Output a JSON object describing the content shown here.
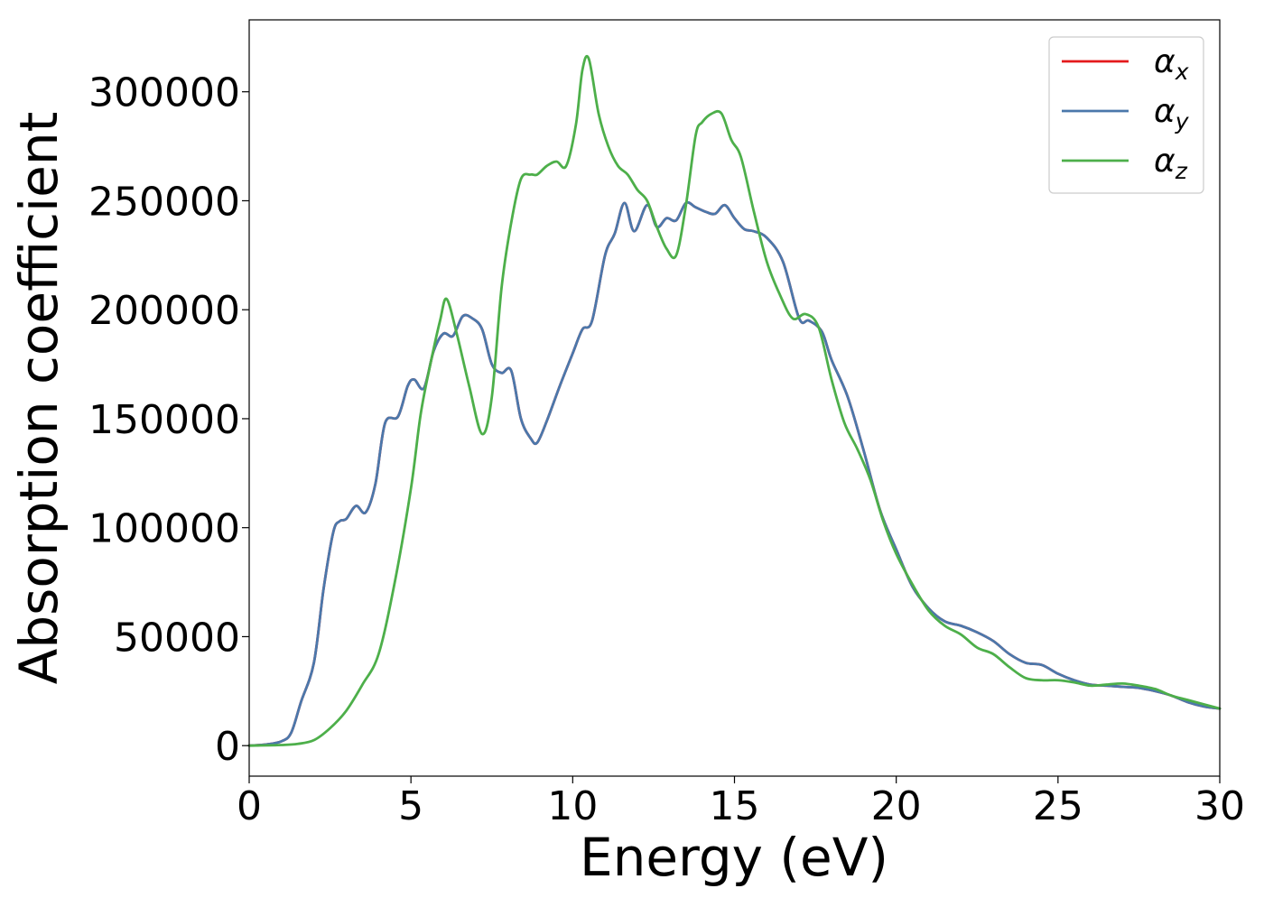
{
  "chart_data": {
    "type": "line",
    "xlabel": "Energy (eV)",
    "ylabel": "Absorption coefficient",
    "xlim": [
      0,
      30
    ],
    "ylim": [
      -14000,
      333000
    ],
    "xticks": [
      0,
      5,
      10,
      15,
      20,
      25,
      30
    ],
    "xtick_labels": [
      "0",
      "5",
      "10",
      "15",
      "20",
      "25",
      "30"
    ],
    "yticks": [
      0,
      50000,
      100000,
      150000,
      200000,
      250000,
      300000
    ],
    "ytick_labels": [
      "0",
      "50000",
      "100000",
      "150000",
      "200000",
      "250000",
      "300000"
    ],
    "grid": false,
    "legend_position": "top-right",
    "series": [
      {
        "name": "α_x",
        "legend_symbol": "α",
        "legend_subscript": "x",
        "color": "#e41a1c",
        "x": [
          0,
          0.5,
          1.0,
          1.3,
          1.6,
          2.0,
          2.3,
          2.6,
          2.8,
          3.0,
          3.3,
          3.6,
          3.9,
          4.2,
          4.6,
          4.9,
          5.1,
          5.4,
          5.7,
          6.0,
          6.3,
          6.6,
          6.9,
          7.2,
          7.5,
          7.8,
          8.1,
          8.4,
          8.7,
          8.9,
          9.2,
          9.6,
          10.0,
          10.3,
          10.6,
          11.0,
          11.3,
          11.6,
          11.9,
          12.3,
          12.6,
          12.9,
          13.2,
          13.5,
          13.8,
          14.1,
          14.4,
          14.7,
          15.0,
          15.3,
          15.6,
          16.0,
          16.5,
          17.0,
          17.3,
          17.7,
          18.0,
          18.5,
          19.0,
          19.5,
          20.0,
          20.5,
          21.0,
          21.5,
          22.0,
          22.5,
          23.0,
          23.5,
          24.0,
          24.5,
          25.0,
          25.5,
          26.0,
          26.5,
          27.0,
          27.5,
          28.0,
          28.5,
          29.0,
          29.5,
          30.0
        ],
        "y": [
          0,
          500,
          2000,
          6000,
          20000,
          38000,
          72000,
          98000,
          103000,
          104000,
          110000,
          107000,
          120000,
          148000,
          151000,
          165000,
          168000,
          164000,
          181000,
          189000,
          188000,
          197000,
          196000,
          191000,
          175000,
          171000,
          172000,
          150000,
          141000,
          139000,
          149000,
          165000,
          180000,
          191000,
          195000,
          225000,
          235000,
          249000,
          236000,
          248000,
          238000,
          242000,
          241000,
          249000,
          247000,
          245000,
          244000,
          248000,
          242000,
          237000,
          236000,
          233000,
          222000,
          196000,
          195000,
          190000,
          177000,
          160000,
          135000,
          108000,
          90000,
          73000,
          63000,
          57000,
          55000,
          52000,
          48000,
          42000,
          38000,
          37000,
          33000,
          30000,
          28000,
          27500,
          27000,
          26500,
          25000,
          23000,
          20000,
          18000,
          17000
        ]
      },
      {
        "name": "α_y",
        "legend_symbol": "α",
        "legend_subscript": "y",
        "color": "#4b78ab",
        "x": [
          0,
          0.5,
          1.0,
          1.3,
          1.6,
          2.0,
          2.3,
          2.6,
          2.8,
          3.0,
          3.3,
          3.6,
          3.9,
          4.2,
          4.6,
          4.9,
          5.1,
          5.4,
          5.7,
          6.0,
          6.3,
          6.6,
          6.9,
          7.2,
          7.5,
          7.8,
          8.1,
          8.4,
          8.7,
          8.9,
          9.2,
          9.6,
          10.0,
          10.3,
          10.6,
          11.0,
          11.3,
          11.6,
          11.9,
          12.3,
          12.6,
          12.9,
          13.2,
          13.5,
          13.8,
          14.1,
          14.4,
          14.7,
          15.0,
          15.3,
          15.6,
          16.0,
          16.5,
          17.0,
          17.3,
          17.7,
          18.0,
          18.5,
          19.0,
          19.5,
          20.0,
          20.5,
          21.0,
          21.5,
          22.0,
          22.5,
          23.0,
          23.5,
          24.0,
          24.5,
          25.0,
          25.5,
          26.0,
          26.5,
          27.0,
          27.5,
          28.0,
          28.5,
          29.0,
          29.5,
          30.0
        ],
        "y": [
          0,
          500,
          2000,
          6000,
          20000,
          38000,
          72000,
          98000,
          103000,
          104000,
          110000,
          107000,
          120000,
          148000,
          151000,
          165000,
          168000,
          164000,
          181000,
          189000,
          188000,
          197000,
          196000,
          191000,
          175000,
          171000,
          172000,
          150000,
          141000,
          139000,
          149000,
          165000,
          180000,
          191000,
          195000,
          225000,
          235000,
          249000,
          236000,
          248000,
          238000,
          242000,
          241000,
          249000,
          247000,
          245000,
          244000,
          248000,
          242000,
          237000,
          236000,
          233000,
          222000,
          196000,
          195000,
          190000,
          177000,
          160000,
          135000,
          108000,
          90000,
          73000,
          63000,
          57000,
          55000,
          52000,
          48000,
          42000,
          38000,
          37000,
          33000,
          30000,
          28000,
          27500,
          27000,
          26500,
          25000,
          23000,
          20000,
          18000,
          17000
        ]
      },
      {
        "name": "α_z",
        "legend_symbol": "α",
        "legend_subscript": "z",
        "color": "#4daf4a",
        "x": [
          0,
          1.0,
          1.5,
          2.0,
          2.5,
          3.0,
          3.5,
          4.0,
          4.5,
          5.0,
          5.3,
          5.6,
          5.9,
          6.1,
          6.4,
          6.8,
          7.2,
          7.5,
          7.8,
          8.1,
          8.4,
          8.7,
          8.9,
          9.2,
          9.5,
          9.8,
          10.1,
          10.3,
          10.5,
          10.8,
          11.1,
          11.4,
          11.7,
          12.0,
          12.3,
          12.6,
          12.9,
          13.2,
          13.5,
          13.8,
          14.0,
          14.3,
          14.6,
          14.9,
          15.2,
          15.6,
          16.0,
          16.4,
          16.8,
          17.2,
          17.6,
          18.0,
          18.4,
          18.8,
          19.2,
          19.6,
          20.0,
          20.5,
          21.0,
          21.5,
          22.0,
          22.5,
          23.0,
          23.5,
          24.0,
          24.5,
          25.0,
          25.5,
          26.0,
          26.5,
          27.0,
          27.5,
          28.0,
          28.5,
          29.0,
          29.5,
          30.0
        ],
        "y": [
          0,
          300,
          800,
          2500,
          8000,
          16000,
          28000,
          42000,
          75000,
          118000,
          152000,
          175000,
          195000,
          205000,
          190000,
          165000,
          143000,
          160000,
          210000,
          240000,
          260000,
          262000,
          262000,
          266000,
          268000,
          266000,
          285000,
          310000,
          315000,
          290000,
          275000,
          266000,
          262000,
          255000,
          250000,
          238000,
          228000,
          225000,
          248000,
          280000,
          286000,
          290000,
          290000,
          278000,
          270000,
          245000,
          222000,
          207000,
          196000,
          198000,
          192000,
          168000,
          148000,
          136000,
          122000,
          103000,
          88000,
          74000,
          62000,
          55000,
          51000,
          45000,
          42000,
          36000,
          31000,
          30000,
          30000,
          29000,
          27500,
          28000,
          28500,
          27500,
          26000,
          23000,
          21000,
          19000,
          17000
        ]
      }
    ]
  }
}
